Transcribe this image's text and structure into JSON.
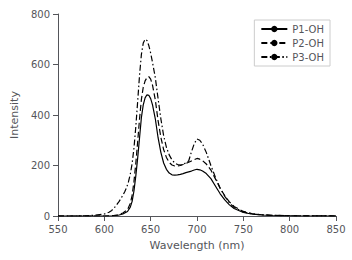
{
  "chart_data": {
    "type": "line",
    "title": "",
    "xlabel": "Wavelength (nm)",
    "ylabel": "Intensity",
    "xlim": [
      550,
      850
    ],
    "ylim": [
      0,
      800
    ],
    "xticks": [
      550,
      600,
      650,
      700,
      750,
      800,
      850
    ],
    "yticks": [
      0,
      200,
      400,
      600,
      800
    ],
    "grid": false,
    "legend": "upper right",
    "series": [
      {
        "name": "P1-OH",
        "color": "#000000",
        "line_style": "solid",
        "x": [
          550,
          580,
          600,
          610,
          615,
          620,
          625,
          628,
          630,
          632,
          634,
          636,
          638,
          640,
          642,
          644,
          646,
          648,
          650,
          652,
          655,
          658,
          661,
          664,
          667,
          670,
          673,
          676,
          679,
          682,
          685,
          688,
          691,
          694,
          697,
          700,
          703,
          706,
          710,
          715,
          720,
          725,
          730,
          735,
          740,
          750,
          760,
          770,
          780,
          800,
          850
        ],
        "values": [
          0,
          0,
          0,
          1,
          3,
          8,
          18,
          35,
          58,
          100,
          160,
          230,
          310,
          390,
          440,
          468,
          480,
          478,
          465,
          440,
          385,
          310,
          252,
          210,
          185,
          170,
          163,
          162,
          163,
          165,
          168,
          172,
          175,
          178,
          182,
          185,
          183,
          178,
          168,
          148,
          118,
          88,
          64,
          44,
          30,
          14,
          7,
          4,
          2,
          1,
          0
        ]
      },
      {
        "name": "P2-OH",
        "color": "#000000",
        "line_style": "dashed",
        "x": [
          550,
          580,
          600,
          610,
          615,
          620,
          625,
          628,
          630,
          632,
          634,
          636,
          638,
          640,
          642,
          644,
          646,
          648,
          650,
          652,
          655,
          658,
          661,
          664,
          667,
          670,
          673,
          676,
          679,
          682,
          685,
          688,
          691,
          694,
          697,
          700,
          703,
          706,
          710,
          715,
          720,
          725,
          730,
          735,
          740,
          750,
          760,
          770,
          780,
          800,
          850
        ],
        "values": [
          0,
          0,
          0,
          2,
          5,
          12,
          25,
          50,
          82,
          138,
          210,
          295,
          385,
          462,
          510,
          535,
          548,
          552,
          542,
          518,
          460,
          378,
          312,
          263,
          232,
          212,
          202,
          198,
          198,
          200,
          204,
          208,
          213,
          218,
          223,
          228,
          225,
          219,
          206,
          182,
          146,
          110,
          80,
          56,
          38,
          18,
          9,
          5,
          3,
          1,
          0
        ]
      },
      {
        "name": "P3-OH",
        "color": "#000000",
        "line_style": "dashdot",
        "x": [
          550,
          570,
          580,
          590,
          600,
          605,
          608,
          610,
          612,
          614,
          616,
          618,
          620,
          622,
          624,
          626,
          628,
          630,
          632,
          634,
          636,
          638,
          640,
          642,
          644,
          646,
          648,
          650,
          652,
          655,
          658,
          661,
          664,
          667,
          670,
          673,
          676,
          679,
          682,
          685,
          688,
          691,
          694,
          697,
          700,
          703,
          706,
          710,
          715,
          720,
          725,
          730,
          735,
          740,
          750,
          760,
          770,
          780,
          800,
          850
        ],
        "values": [
          0,
          0,
          1,
          3,
          8,
          15,
          22,
          30,
          38,
          48,
          58,
          70,
          82,
          96,
          112,
          135,
          165,
          208,
          270,
          355,
          455,
          558,
          640,
          685,
          700,
          695,
          675,
          645,
          608,
          548,
          465,
          385,
          318,
          272,
          242,
          222,
          210,
          204,
          202,
          205,
          210,
          218,
          254,
          286,
          305,
          300,
          285,
          252,
          200,
          152,
          110,
          78,
          52,
          34,
          16,
          8,
          5,
          3,
          1,
          0
        ]
      }
    ]
  }
}
